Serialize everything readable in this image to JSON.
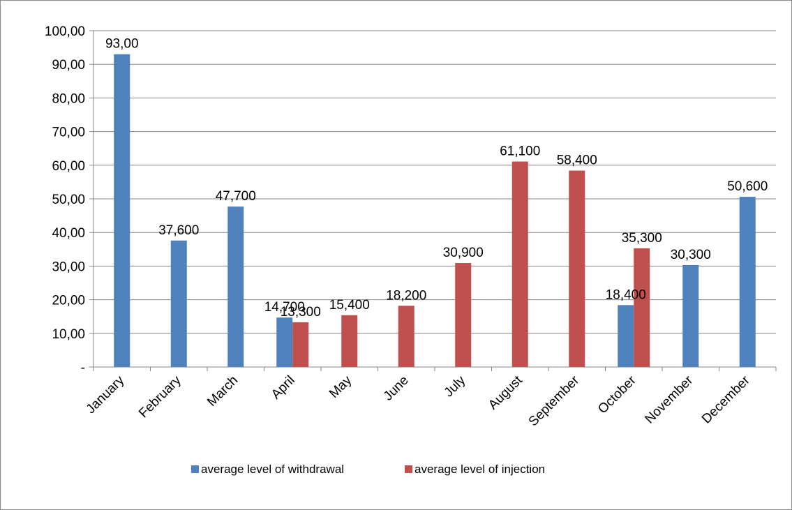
{
  "chart_data": {
    "type": "bar",
    "categories": [
      "January",
      "February",
      "March",
      "April",
      "May",
      "June",
      "July",
      "August",
      "September",
      "October",
      "November",
      "December"
    ],
    "series": [
      {
        "name": "average level of withdrawal",
        "color": "#4F81BD",
        "values": [
          93.0,
          37.6,
          47.7,
          14.7,
          null,
          null,
          null,
          null,
          null,
          18.4,
          30.3,
          50.6
        ],
        "labels": [
          "93,00",
          "37,600",
          "47,700",
          "14,700",
          null,
          null,
          null,
          null,
          null,
          "18,400",
          "30,300",
          "50,600"
        ]
      },
      {
        "name": "average level of injection",
        "color": "#C0504D",
        "values": [
          null,
          null,
          null,
          13.3,
          15.4,
          18.2,
          30.9,
          61.1,
          58.4,
          35.3,
          null,
          null
        ],
        "labels": [
          null,
          null,
          null,
          "13,300",
          "15,400",
          "18,200",
          "30,900",
          "61,100",
          "58,400",
          "35,300",
          null,
          null
        ]
      }
    ],
    "y_ticks": [
      {
        "value": 0,
        "label": "-"
      },
      {
        "value": 10,
        "label": "10,00"
      },
      {
        "value": 20,
        "label": "20,00"
      },
      {
        "value": 30,
        "label": "30,00"
      },
      {
        "value": 40,
        "label": "40,00"
      },
      {
        "value": 50,
        "label": "50,00"
      },
      {
        "value": 60,
        "label": "60,00"
      },
      {
        "value": 70,
        "label": "70,00"
      },
      {
        "value": 80,
        "label": "80,00"
      },
      {
        "value": 90,
        "label": "90,00"
      },
      {
        "value": 100,
        "label": "100,00"
      }
    ],
    "ylim": [
      0,
      100
    ],
    "grid": true,
    "legend_position": "bottom",
    "title": "",
    "xlabel": "",
    "ylabel": ""
  }
}
